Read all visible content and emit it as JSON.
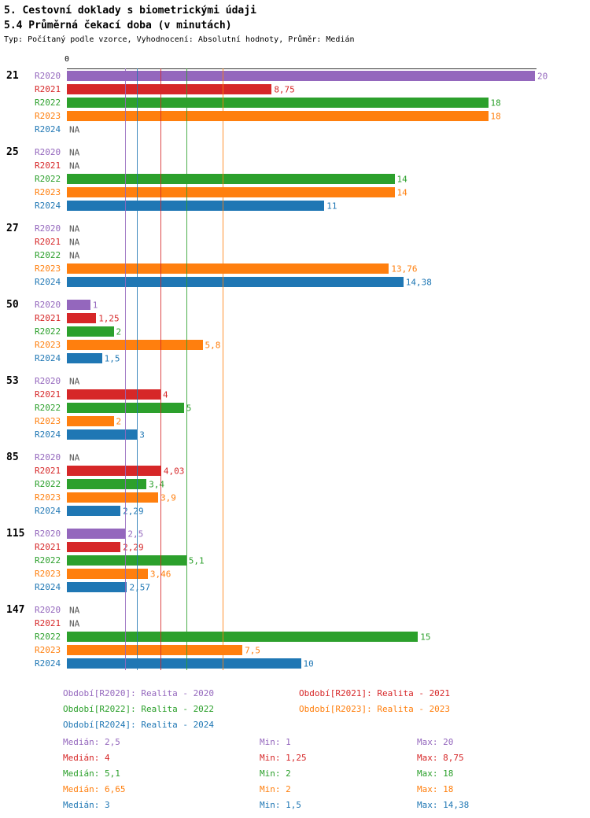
{
  "title": "5. Cestovní doklady s biometrickými údaji",
  "subtitle": "5.4 Průměrná čekací doba (v minutách)",
  "meta": "Typ: Počítaný podle vzorce, Vyhodnocení: Absolutní hodnoty, Průměr: Medián",
  "axis": {
    "zero_label": "0"
  },
  "na_color": "#555555",
  "chart_data": {
    "type": "bar",
    "orientation": "horizontal",
    "x_max": 20,
    "grid": "median-lines-per-series",
    "legend_position": "bottom",
    "categories": [
      "21",
      "25",
      "27",
      "50",
      "53",
      "85",
      "115",
      "147"
    ],
    "series": [
      {
        "key": "R2020",
        "name": "Realita - 2020",
        "legend_label": "Období[R2020]: Realita - 2020",
        "color": "#9467bd",
        "median": 2.5,
        "values": [
          20,
          null,
          null,
          1,
          null,
          null,
          2.5,
          null
        ],
        "labels": [
          "20",
          "NA",
          "NA",
          "1",
          "NA",
          "NA",
          "2,5",
          "NA"
        ],
        "stats": {
          "median": "Medián: 2,5",
          "min": "Min: 1",
          "max": "Max: 20"
        }
      },
      {
        "key": "R2021",
        "name": "Realita - 2021",
        "legend_label": "Období[R2021]: Realita - 2021",
        "color": "#d62728",
        "median": 4,
        "values": [
          8.75,
          null,
          null,
          1.25,
          4,
          4.03,
          2.29,
          null
        ],
        "labels": [
          "8,75",
          "NA",
          "NA",
          "1,25",
          "4",
          "4,03",
          "2,29",
          "NA"
        ],
        "stats": {
          "median": "Medián: 4",
          "min": "Min: 1,25",
          "max": "Max: 8,75"
        }
      },
      {
        "key": "R2022",
        "name": "Realita - 2022",
        "legend_label": "Období[R2022]: Realita - 2022",
        "color": "#2ca02c",
        "median": 5.1,
        "values": [
          18,
          14,
          null,
          2,
          5,
          3.4,
          5.1,
          15
        ],
        "labels": [
          "18",
          "14",
          "NA",
          "2",
          "5",
          "3,4",
          "5,1",
          "15"
        ],
        "stats": {
          "median": "Medián: 5,1",
          "min": "Min: 2",
          "max": "Max: 18"
        }
      },
      {
        "key": "R2023",
        "name": "Realita - 2023",
        "legend_label": "Období[R2023]: Realita - 2023",
        "color": "#ff7f0e",
        "median": 6.65,
        "values": [
          18,
          14,
          13.76,
          5.8,
          2,
          3.9,
          3.46,
          7.5
        ],
        "labels": [
          "18",
          "14",
          "13,76",
          "5,8",
          "2",
          "3,9",
          "3,46",
          "7,5"
        ],
        "stats": {
          "median": "Medián: 6,65",
          "min": "Min: 2",
          "max": "Max: 18"
        }
      },
      {
        "key": "R2024",
        "name": "Realita - 2024",
        "legend_label": "Období[R2024]: Realita - 2024",
        "color": "#1f77b4",
        "median": 3,
        "values": [
          null,
          11,
          14.38,
          1.5,
          3,
          2.29,
          2.57,
          10
        ],
        "labels": [
          "NA",
          "11",
          "14,38",
          "1,5",
          "3",
          "2,29",
          "2,57",
          "10"
        ],
        "stats": {
          "median": "Medián: 3",
          "min": "Min: 1,5",
          "max": "Max: 14,38"
        }
      }
    ]
  }
}
